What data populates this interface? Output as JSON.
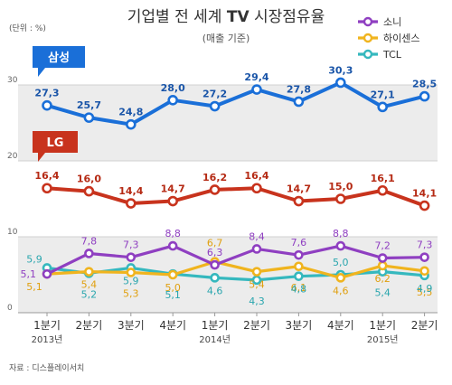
{
  "chart_data": {
    "type": "line",
    "title_prefix": "기업별 전 세계 ",
    "title_tv": "TV",
    "title_suffix": " 시장점유율",
    "subtitle": "(매출 기준)",
    "unit": "(단위 : %)",
    "source": "자료 : 디스플레이서치",
    "categories": [
      "1분기",
      "2분기",
      "3분기",
      "4분기",
      "1분기",
      "2분기",
      "3분기",
      "4분기",
      "1분기",
      "2분기"
    ],
    "year_labels": [
      {
        "index": 0,
        "label": "2013년"
      },
      {
        "index": 4,
        "label": "2014년"
      },
      {
        "index": 8,
        "label": "2015년"
      }
    ],
    "y_ticks": [
      0,
      10,
      20,
      30
    ],
    "ylim": [
      0,
      31
    ],
    "series": [
      {
        "name": "삼성",
        "color": "#1a6fd8",
        "label_color": "#1a55a8",
        "values": [
          27.3,
          25.7,
          24.8,
          28.0,
          27.2,
          29.4,
          27.8,
          30.3,
          27.1,
          28.5
        ],
        "labels": [
          "27,3",
          "25,7",
          "24,8",
          "28,0",
          "27,2",
          "29,4",
          "27,8",
          "30,3",
          "27,1",
          "28,5"
        ],
        "label_pos": [
          "above",
          "above",
          "above",
          "above",
          "above",
          "above",
          "above",
          "above",
          "above",
          "above"
        ]
      },
      {
        "name": "LG",
        "color": "#c8331d",
        "label_color": "#b52a14",
        "values": [
          16.4,
          16.0,
          14.4,
          14.7,
          16.2,
          16.4,
          14.7,
          15.0,
          16.1,
          14.1
        ],
        "labels": [
          "16,4",
          "16,0",
          "14,4",
          "14,7",
          "16,2",
          "16,4",
          "14,7",
          "15,0",
          "16,1",
          "14,1"
        ],
        "label_pos": [
          "above",
          "above",
          "above",
          "above",
          "above",
          "above",
          "above",
          "above",
          "above",
          "above"
        ]
      },
      {
        "name": "소니",
        "color": "#8f3fc1",
        "label_color": "#8f3fc1",
        "values": [
          5.1,
          7.8,
          7.3,
          8.8,
          6.3,
          8.4,
          7.6,
          8.8,
          7.2,
          7.3
        ],
        "labels": [
          "5,1",
          "7,8",
          "7,3",
          "8,8",
          "6,3",
          "8,4",
          "7,6",
          "8,8",
          "7,2",
          "7,3"
        ],
        "label_pos": [
          "left",
          "above",
          "above",
          "above",
          "above",
          "above",
          "above",
          "above",
          "above",
          "above"
        ]
      },
      {
        "name": "하이센스",
        "color": "#f0b41e",
        "label_color": "#e0a010",
        "values": [
          5.1,
          5.4,
          5.3,
          5.0,
          6.7,
          5.4,
          6.1,
          4.6,
          6.2,
          5.5
        ],
        "labels": [
          "5,1",
          "5,4",
          "5,3",
          "5,0",
          "6,7",
          "5,4",
          "6,1",
          "4,6",
          "6,2",
          "5,5"
        ],
        "label_pos": [
          "belowleft",
          "below",
          "below2",
          "below",
          "above2",
          "below",
          "below2",
          "below",
          "below",
          "below2"
        ]
      },
      {
        "name": "TCL",
        "color": "#35b8be",
        "label_color": "#2aa6ae",
        "values": [
          5.9,
          5.2,
          5.9,
          5.1,
          4.6,
          4.3,
          4.8,
          5.0,
          5.4,
          4.9
        ],
        "labels": [
          "5,9",
          "5,2",
          "5,9",
          "5,1",
          "4,6",
          "4,3",
          "4,8",
          "5,0",
          "5,4",
          "4,9"
        ],
        "label_pos": [
          "aboveleft",
          "below2",
          "below",
          "below2",
          "below",
          "below2",
          "below",
          "above",
          "below2",
          "below"
        ]
      }
    ],
    "legend": {
      "placement": "top-right",
      "items": [
        "소니",
        "하이센스",
        "TCL"
      ]
    },
    "callouts": [
      {
        "series": "삼성",
        "label": "삼성",
        "color": "#1a6fd8"
      },
      {
        "series": "LG",
        "label": "LG",
        "color": "#c8331d"
      }
    ]
  }
}
